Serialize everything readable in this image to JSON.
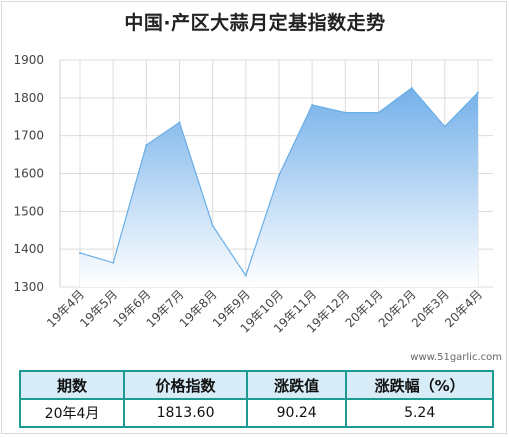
{
  "title": "中国·产区大蒜月定基指数走势",
  "watermark": "www.51garlic.com",
  "colors": {
    "line": "#6aaee6",
    "fill_top": "#74b0ea",
    "fill_bottom": "#ffffff",
    "grid": "#dcdcdc",
    "table_border": "#1f9a92",
    "table_header_bg": "#d7ecf7"
  },
  "chart_data": {
    "type": "area",
    "title": "中国·产区大蒜月定基指数走势",
    "categories": [
      "19年4月",
      "19年5月",
      "19年6月",
      "19年7月",
      "19年8月",
      "19年9月",
      "19年10月",
      "19年11月",
      "19年12月",
      "20年1月",
      "20年2月",
      "20年3月",
      "20年4月"
    ],
    "values": [
      1390,
      1364,
      1675,
      1735,
      1462,
      1330,
      1595,
      1781,
      1761,
      1761,
      1826,
      1724,
      1814
    ],
    "ylim": [
      1300,
      1900
    ],
    "yticks": [
      1300,
      1400,
      1500,
      1600,
      1700,
      1800,
      1900
    ],
    "grid": true,
    "xlabel": "",
    "ylabel": ""
  },
  "table": {
    "headers": [
      "期数",
      "价格指数",
      "涨跌值",
      "涨跌幅（%）"
    ],
    "row": [
      "20年4月",
      "1813.60",
      "90.24",
      "5.24"
    ]
  }
}
